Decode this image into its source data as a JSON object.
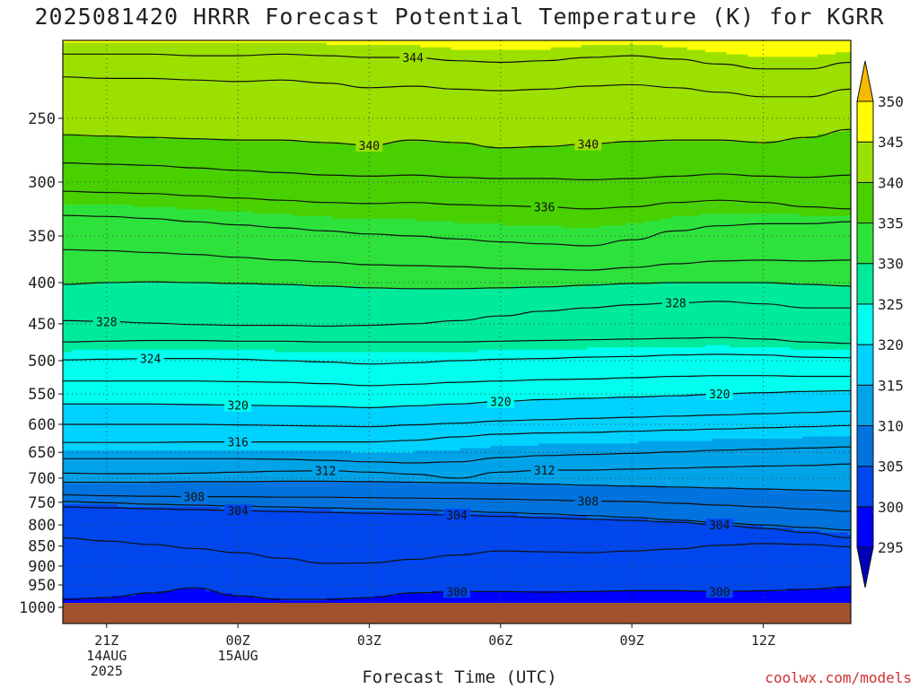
{
  "title": "2025081420 HRRR Forecast Potential Temperature (K) for KGRR",
  "xlabel": "Forecast Time (UTC)",
  "credit": "coolwx.com/models",
  "chart_data": {
    "type": "heatmap",
    "title": "2025081420 HRRR Forecast Potential Temperature (K) for KGRR",
    "xlabel": "Forecast Time (UTC)",
    "ylabel": "",
    "units": "K",
    "x_hours": [
      0,
      1,
      2,
      3,
      4,
      5,
      6,
      7,
      8,
      9,
      10,
      11,
      12,
      13,
      14,
      15,
      16,
      17,
      18
    ],
    "x_ticks": [
      {
        "hour": 1,
        "label": "21Z",
        "sub": [
          "14AUG",
          "2025"
        ]
      },
      {
        "hour": 4,
        "label": "00Z",
        "sub": [
          "15AUG"
        ]
      },
      {
        "hour": 7,
        "label": "03Z",
        "sub": []
      },
      {
        "hour": 10,
        "label": "06Z",
        "sub": []
      },
      {
        "hour": 13,
        "label": "09Z",
        "sub": []
      },
      {
        "hour": 16,
        "label": "12Z",
        "sub": []
      }
    ],
    "pressure_ticks": [
      250,
      300,
      350,
      400,
      450,
      500,
      550,
      600,
      650,
      700,
      750,
      800,
      850,
      900,
      950,
      1000
    ],
    "ylim": [
      1000,
      200
    ],
    "colorbar": {
      "levels": [
        295,
        300,
        305,
        310,
        315,
        320,
        325,
        330,
        335,
        340,
        345,
        350
      ],
      "colors": [
        "#0000ff",
        "#0046ee",
        "#0073de",
        "#00a2e8",
        "#00d2ff",
        "#00ffee",
        "#00ea9c",
        "#2ee23c",
        "#48d000",
        "#9ce000",
        "#ffff00",
        "#f6ba00"
      ],
      "under_color": "#0000b8",
      "over_color": "#f6ba00"
    },
    "terrain_color": "#a0522d",
    "contours": [
      {
        "value": 344,
        "pressure": [
          208,
          208,
          208,
          209,
          209,
          208,
          209,
          210,
          210,
          212,
          213,
          212,
          210,
          209,
          211,
          214,
          217,
          217,
          213
        ],
        "label": true
      },
      {
        "value": 342,
        "pressure": [
          222,
          223,
          223,
          224,
          225,
          224,
          226,
          229,
          228,
          230,
          231,
          230,
          228,
          227,
          229,
          232,
          235,
          235,
          230
        ],
        "label": false
      },
      {
        "value": 340,
        "pressure": [
          262,
          263,
          264,
          265,
          266,
          266,
          268,
          270,
          266,
          268,
          272,
          271,
          269,
          267,
          266,
          266,
          268,
          264,
          258
        ],
        "label": true
      },
      {
        "value": 338,
        "pressure": [
          284,
          285,
          286,
          288,
          290,
          292,
          294,
          295,
          294,
          296,
          297,
          297,
          298,
          297,
          295,
          293,
          295,
          296,
          294
        ],
        "label": false
      },
      {
        "value": 336,
        "pressure": [
          308,
          309,
          310,
          312,
          314,
          316,
          318,
          319,
          318,
          320,
          321,
          322,
          324,
          322,
          318,
          316,
          318,
          322,
          324
        ],
        "label": true
      },
      {
        "value": 334,
        "pressure": [
          330,
          331,
          333,
          336,
          339,
          342,
          345,
          348,
          350,
          353,
          356,
          358,
          360,
          354,
          345,
          340,
          338,
          338,
          336
        ],
        "label": false
      },
      {
        "value": 332,
        "pressure": [
          364,
          365,
          367,
          369,
          372,
          375,
          377,
          380,
          381,
          382,
          384,
          385,
          386,
          383,
          379,
          376,
          375,
          376,
          375
        ],
        "label": false
      },
      {
        "value": 330,
        "pressure": [
          402,
          400,
          399,
          400,
          401,
          402,
          404,
          406,
          407,
          407,
          406,
          405,
          403,
          401,
          400,
          400,
          400,
          402,
          404
        ],
        "label": false
      },
      {
        "value": 328,
        "pressure": [
          446,
          447,
          449,
          451,
          452,
          452,
          453,
          452,
          450,
          446,
          440,
          434,
          430,
          426,
          424,
          422,
          425,
          430,
          430
        ],
        "label": true
      },
      {
        "value": 326,
        "pressure": [
          474,
          473,
          472,
          472,
          473,
          473,
          474,
          474,
          474,
          474,
          473,
          472,
          471,
          470,
          469,
          468,
          470,
          474,
          476
        ],
        "label": false
      },
      {
        "value": 324,
        "pressure": [
          499,
          498,
          497,
          497,
          498,
          500,
          502,
          505,
          503,
          500,
          498,
          497,
          495,
          494,
          492,
          491,
          492,
          495,
          496
        ],
        "label": true
      },
      {
        "value": 322,
        "pressure": [
          530,
          530,
          530,
          530,
          531,
          532,
          534,
          537,
          535,
          532,
          530,
          528,
          527,
          525,
          523,
          522,
          522,
          523,
          523
        ],
        "label": false
      },
      {
        "value": 320,
        "pressure": [
          566,
          566,
          566,
          567,
          568,
          569,
          570,
          572,
          569,
          566,
          562,
          559,
          557,
          555,
          553,
          550,
          548,
          546,
          545
        ],
        "label": true
      },
      {
        "value": 318,
        "pressure": [
          600,
          600,
          600,
          600,
          601,
          602,
          603,
          604,
          601,
          598,
          594,
          592,
          590,
          588,
          586,
          584,
          582,
          580,
          578
        ],
        "label": false
      },
      {
        "value": 316,
        "pressure": [
          632,
          632,
          632,
          631,
          631,
          631,
          631,
          631,
          628,
          622,
          617,
          615,
          614,
          612,
          610,
          608,
          606,
          604,
          602
        ],
        "label": true
      },
      {
        "value": 314,
        "pressure": [
          662,
          662,
          662,
          662,
          662,
          663,
          665,
          668,
          670,
          668,
          660,
          656,
          654,
          652,
          649,
          646,
          644,
          642,
          640
        ],
        "label": false
      },
      {
        "value": 312,
        "pressure": [
          690,
          691,
          691,
          690,
          688,
          686,
          685,
          688,
          692,
          700,
          688,
          684,
          684,
          682,
          680,
          678,
          676,
          675,
          672
        ],
        "label": true
      },
      {
        "value": 310,
        "pressure": [
          708,
          708,
          708,
          707,
          707,
          706,
          706,
          707,
          708,
          709,
          710,
          712,
          714,
          716,
          718,
          720,
          722,
          724,
          726
        ],
        "label": false
      },
      {
        "value": 308,
        "pressure": [
          734,
          736,
          737,
          738,
          738,
          739,
          739,
          740,
          741,
          742,
          743,
          745,
          747,
          748,
          752,
          756,
          760,
          765,
          770
        ],
        "label": true
      },
      {
        "value": 306,
        "pressure": [
          748,
          751,
          754,
          756,
          758,
          760,
          762,
          764,
          766,
          769,
          772,
          775,
          779,
          783,
          789,
          795,
          800,
          806,
          812
        ],
        "label": false
      },
      {
        "value": 304,
        "pressure": [
          760,
          762,
          764,
          766,
          768,
          770,
          772,
          774,
          776,
          778,
          781,
          784,
          787,
          790,
          794,
          800,
          808,
          818,
          830
        ],
        "label": true
      },
      {
        "value": 302,
        "pressure": [
          830,
          838,
          846,
          856,
          866,
          880,
          893,
          892,
          883,
          872,
          862,
          864,
          866,
          862,
          857,
          848,
          844,
          846,
          852
        ],
        "label": false
      },
      {
        "value": 300,
        "pressure": [
          990,
          985,
          972,
          958,
          980,
          990,
          990,
          985,
          972,
          968,
          968,
          970,
          968,
          966,
          966,
          968,
          966,
          962,
          955
        ],
        "label": true
      }
    ],
    "contour_labels": [
      {
        "value": "344",
        "hour": 8
      },
      {
        "value": "340",
        "hour": 7
      },
      {
        "value": "340",
        "hour": 12
      },
      {
        "value": "336",
        "hour": 11
      },
      {
        "value": "328",
        "hour": 14
      },
      {
        "value": "328",
        "hour": 1
      },
      {
        "value": "324",
        "hour": 2
      },
      {
        "value": "320",
        "hour": 4
      },
      {
        "value": "320",
        "hour": 10
      },
      {
        "value": "320",
        "hour": 15
      },
      {
        "value": "316",
        "hour": 4
      },
      {
        "value": "312",
        "hour": 6
      },
      {
        "value": "312",
        "hour": 11
      },
      {
        "value": "308",
        "hour": 3
      },
      {
        "value": "308",
        "hour": 12
      },
      {
        "value": "304",
        "hour": 4
      },
      {
        "value": "304",
        "hour": 9
      },
      {
        "value": "304",
        "hour": 15
      },
      {
        "value": "300",
        "hour": 9
      },
      {
        "value": "300",
        "hour": 15
      }
    ]
  }
}
